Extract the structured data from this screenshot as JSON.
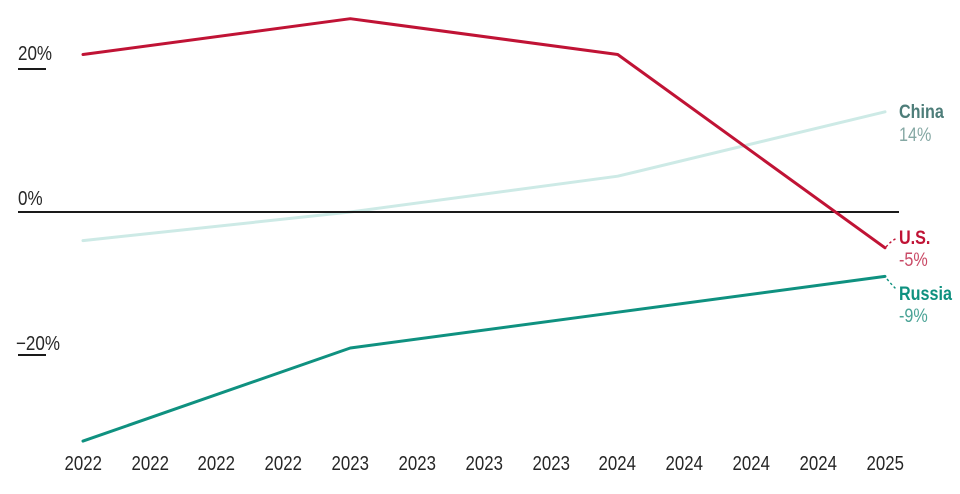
{
  "chart_data": {
    "type": "line",
    "title": "",
    "x_tick_labels": [
      "2022",
      "2022",
      "2022",
      "2022",
      "2023",
      "2023",
      "2023",
      "2023",
      "2024",
      "2024",
      "2024",
      "2024",
      "2025"
    ],
    "x_years": [
      "2022",
      "2023",
      "2024",
      "2025"
    ],
    "y_axis": {
      "unit": "%",
      "ticks": [
        {
          "label": "20%",
          "value": 20,
          "underline": true
        },
        {
          "label": "0%",
          "value": 0,
          "underline": false
        },
        {
          "label": "−20%",
          "value": -20,
          "underline": true
        }
      ],
      "zero_line": true,
      "ylim": [
        -39,
        29
      ]
    },
    "series": [
      {
        "id": "china",
        "name": "China",
        "color": "#cdeae6",
        "label_color": "#4d7d79",
        "value_label_color": "#85a8a4",
        "tick_indices": [
          0,
          4,
          8,
          12
        ],
        "values": [
          -4,
          0,
          5,
          14
        ],
        "end_label": {
          "name": "China",
          "value": "14%"
        },
        "under_axis": true
      },
      {
        "id": "russia",
        "name": "Russia",
        "color": "#0f9180",
        "label_color": "#0f9180",
        "value_label_color": "#4aa396",
        "tick_indices": [
          0,
          4,
          8,
          12
        ],
        "values": [
          -32,
          -19,
          -14,
          -9
        ],
        "end_label": {
          "name": "Russia",
          "value": "-9%"
        },
        "under_axis": false
      },
      {
        "id": "us",
        "name": "U.S.",
        "color": "#c01335",
        "label_color": "#c01335",
        "value_label_color": "#c94a66",
        "tick_indices": [
          0,
          4,
          8,
          12
        ],
        "values": [
          22,
          27,
          22,
          -5
        ],
        "end_label": {
          "name": "U.S.",
          "value": "-5%"
        },
        "under_axis": false
      }
    ],
    "axis_color": "#1a1a1a",
    "text_color": "#262626",
    "legend_position": "right-of-line-ends",
    "grid": false
  }
}
